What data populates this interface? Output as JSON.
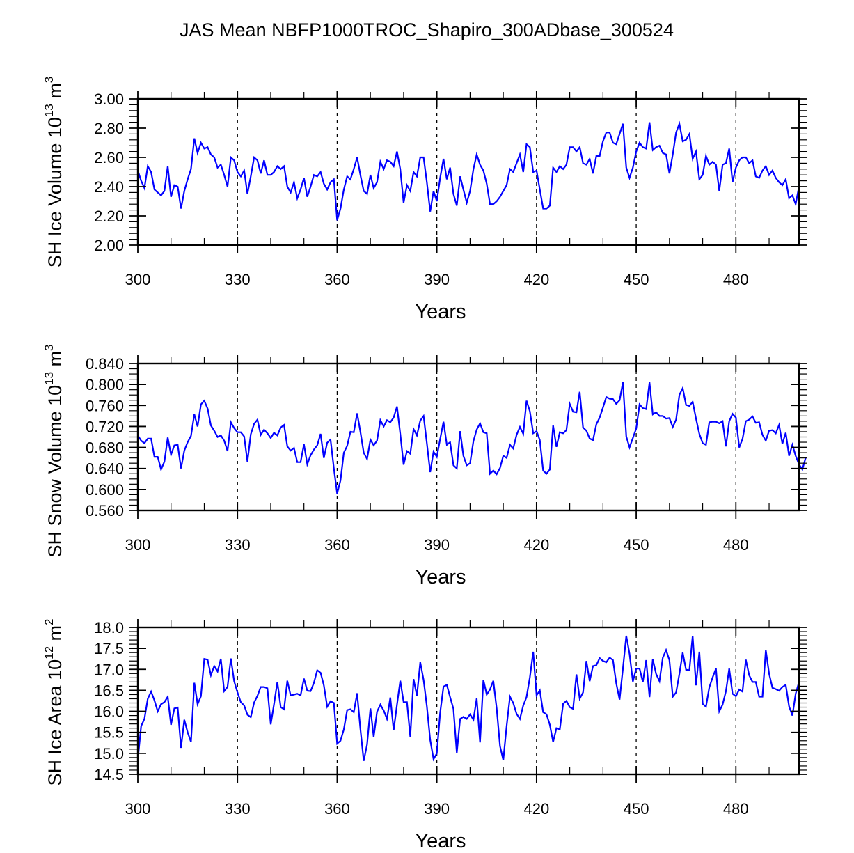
{
  "chart_data": {
    "title": "JAS Mean NBFP1000TROC_Shapiro_300ADbase_300524",
    "panels": [
      {
        "type": "line",
        "ylabel": {
          "text": "SH Ice Volume 10",
          "exp": "13",
          "unit": " m",
          "unit_exp": "3"
        },
        "xlabel": "Years",
        "xlim": [
          300,
          499
        ],
        "ylim": [
          2.0,
          3.0
        ],
        "xticks": [
          300,
          330,
          360,
          390,
          420,
          450,
          480
        ],
        "yticks": [
          2.0,
          2.2,
          2.4,
          2.6,
          2.8,
          3.0
        ],
        "ytick_labels": [
          "2.00",
          "2.20",
          "2.40",
          "2.60",
          "2.80",
          "3.00"
        ],
        "y_minor_per_major": 5,
        "vlines": [
          330,
          360,
          390,
          420,
          450,
          480
        ],
        "series": [
          {
            "name": "SH Ice Volume",
            "color": "#0000ff",
            "x_start": 300,
            "values": [
              2.51,
              2.44,
              2.39,
              2.54,
              2.5,
              2.38,
              2.36,
              2.34,
              2.37,
              2.54,
              2.33,
              2.41,
              2.4,
              2.25,
              2.37,
              2.45,
              2.52,
              2.73,
              2.63,
              2.7,
              2.66,
              2.67,
              2.62,
              2.6,
              2.53,
              2.55,
              2.48,
              2.4,
              2.6,
              2.58,
              2.5,
              2.47,
              2.51,
              2.35,
              2.47,
              2.6,
              2.58,
              2.49,
              2.58,
              2.48,
              2.48,
              2.5,
              2.54,
              2.52,
              2.54,
              2.4,
              2.36,
              2.43,
              2.32,
              2.38,
              2.46,
              2.33,
              2.4,
              2.48,
              2.47,
              2.5,
              2.42,
              2.38,
              2.43,
              2.45,
              2.17,
              2.25,
              2.38,
              2.47,
              2.45,
              2.52,
              2.6,
              2.48,
              2.37,
              2.35,
              2.48,
              2.39,
              2.43,
              2.57,
              2.52,
              2.58,
              2.57,
              2.54,
              2.64,
              2.52,
              2.29,
              2.41,
              2.37,
              2.5,
              2.47,
              2.6,
              2.6,
              2.43,
              2.23,
              2.37,
              2.3,
              2.46,
              2.59,
              2.45,
              2.53,
              2.35,
              2.27,
              2.47,
              2.38,
              2.29,
              2.37,
              2.52,
              2.62,
              2.55,
              2.51,
              2.42,
              2.28,
              2.28,
              2.3,
              2.33,
              2.37,
              2.41,
              2.52,
              2.5,
              2.56,
              2.62,
              2.5,
              2.69,
              2.67,
              2.5,
              2.51,
              2.38,
              2.25,
              2.25,
              2.27,
              2.53,
              2.5,
              2.54,
              2.52,
              2.55,
              2.67,
              2.67,
              2.64,
              2.67,
              2.56,
              2.55,
              2.59,
              2.49,
              2.61,
              2.61,
              2.71,
              2.77,
              2.77,
              2.7,
              2.69,
              2.76,
              2.83,
              2.53,
              2.46,
              2.53,
              2.64,
              2.7,
              2.67,
              2.66,
              2.84,
              2.65,
              2.67,
              2.68,
              2.63,
              2.62,
              2.49,
              2.62,
              2.77,
              2.83,
              2.71,
              2.72,
              2.76,
              2.59,
              2.64,
              2.45,
              2.48,
              2.61,
              2.55,
              2.57,
              2.55,
              2.37,
              2.55,
              2.56,
              2.66,
              2.43,
              2.53,
              2.58,
              2.6,
              2.6,
              2.56,
              2.58,
              2.47,
              2.46,
              2.51,
              2.54,
              2.48,
              2.51,
              2.46,
              2.43,
              2.41,
              2.45,
              2.32,
              2.34,
              2.28,
              2.4
            ]
          }
        ]
      },
      {
        "type": "line",
        "ylabel": {
          "text": "SH Snow Volume 10",
          "exp": "13",
          "unit": " m",
          "unit_exp": "3"
        },
        "xlabel": "Years",
        "xlim": [
          300,
          499
        ],
        "ylim": [
          0.56,
          0.84
        ],
        "xticks": [
          300,
          330,
          360,
          390,
          420,
          450,
          480
        ],
        "yticks": [
          0.56,
          0.6,
          0.64,
          0.68,
          0.72,
          0.76,
          0.8,
          0.84
        ],
        "ytick_labels": [
          "0.560",
          "0.600",
          "0.640",
          "0.680",
          "0.720",
          "0.760",
          "0.800",
          "0.840"
        ],
        "y_minor_per_major": 4,
        "vlines": [
          330,
          360,
          390,
          420,
          450,
          480
        ],
        "series": [
          {
            "name": "SH Snow Volume",
            "color": "#0000ff",
            "x_start": 300,
            "values": [
              0.703,
              0.693,
              0.688,
              0.697,
              0.697,
              0.662,
              0.662,
              0.638,
              0.653,
              0.699,
              0.666,
              0.684,
              0.685,
              0.64,
              0.674,
              0.69,
              0.702,
              0.743,
              0.72,
              0.762,
              0.769,
              0.754,
              0.722,
              0.712,
              0.7,
              0.703,
              0.693,
              0.673,
              0.728,
              0.717,
              0.709,
              0.709,
              0.701,
              0.653,
              0.705,
              0.725,
              0.733,
              0.704,
              0.714,
              0.707,
              0.698,
              0.708,
              0.703,
              0.718,
              0.723,
              0.682,
              0.674,
              0.679,
              0.652,
              0.652,
              0.686,
              0.648,
              0.665,
              0.676,
              0.684,
              0.706,
              0.66,
              0.689,
              0.695,
              0.64,
              0.592,
              0.617,
              0.67,
              0.683,
              0.71,
              0.709,
              0.745,
              0.71,
              0.67,
              0.658,
              0.695,
              0.684,
              0.693,
              0.732,
              0.72,
              0.732,
              0.728,
              0.737,
              0.758,
              0.706,
              0.647,
              0.673,
              0.668,
              0.715,
              0.703,
              0.731,
              0.74,
              0.688,
              0.633,
              0.672,
              0.662,
              0.696,
              0.729,
              0.685,
              0.69,
              0.646,
              0.64,
              0.711,
              0.664,
              0.646,
              0.65,
              0.692,
              0.714,
              0.726,
              0.709,
              0.707,
              0.63,
              0.636,
              0.629,
              0.641,
              0.664,
              0.66,
              0.685,
              0.678,
              0.704,
              0.719,
              0.706,
              0.769,
              0.749,
              0.707,
              0.711,
              0.694,
              0.636,
              0.63,
              0.638,
              0.722,
              0.681,
              0.709,
              0.707,
              0.713,
              0.763,
              0.748,
              0.747,
              0.786,
              0.718,
              0.712,
              0.697,
              0.694,
              0.724,
              0.737,
              0.756,
              0.776,
              0.773,
              0.772,
              0.763,
              0.77,
              0.804,
              0.701,
              0.68,
              0.698,
              0.716,
              0.762,
              0.755,
              0.753,
              0.804,
              0.743,
              0.747,
              0.74,
              0.74,
              0.735,
              0.736,
              0.719,
              0.733,
              0.78,
              0.793,
              0.761,
              0.759,
              0.767,
              0.735,
              0.706,
              0.688,
              0.685,
              0.728,
              0.729,
              0.729,
              0.726,
              0.73,
              0.682,
              0.73,
              0.744,
              0.737,
              0.68,
              0.696,
              0.73,
              0.733,
              0.739,
              0.727,
              0.728,
              0.704,
              0.693,
              0.712,
              0.713,
              0.707,
              0.723,
              0.687,
              0.708,
              0.664,
              0.685,
              0.664,
              0.648,
              0.638,
              0.66
            ]
          }
        ]
      },
      {
        "type": "line",
        "ylabel": {
          "text": "SH Ice Area 10",
          "exp": "12",
          "unit": " m",
          "unit_exp": "2"
        },
        "xlabel": "Years",
        "xlim": [
          300,
          499
        ],
        "ylim": [
          14.5,
          18.0
        ],
        "xticks": [
          300,
          330,
          360,
          390,
          420,
          450,
          480
        ],
        "yticks": [
          14.5,
          15.0,
          15.5,
          16.0,
          16.5,
          17.0,
          17.5,
          18.0
        ],
        "ytick_labels": [
          "14.5",
          "15.0",
          "15.5",
          "16.0",
          "16.5",
          "17.0",
          "17.5",
          "18.0"
        ],
        "y_minor_per_major": 5,
        "vlines": [
          330,
          360,
          390,
          420,
          450,
          480
        ],
        "series": [
          {
            "name": "SH Ice Area",
            "color": "#0000ff",
            "x_start": 300,
            "values": [
              14.85,
              15.65,
              15.82,
              16.3,
              16.47,
              16.26,
              16.0,
              16.17,
              16.22,
              16.35,
              15.68,
              16.07,
              16.09,
              15.13,
              15.8,
              15.5,
              15.27,
              16.68,
              16.17,
              16.36,
              17.25,
              17.23,
              16.86,
              17.08,
              16.95,
              17.25,
              16.48,
              16.58,
              17.26,
              16.72,
              16.45,
              16.22,
              16.14,
              15.92,
              15.86,
              16.21,
              16.37,
              16.58,
              16.58,
              16.55,
              15.69,
              16.17,
              16.7,
              16.1,
              16.05,
              16.73,
              16.38,
              16.4,
              16.42,
              16.38,
              16.78,
              16.49,
              16.48,
              16.68,
              16.98,
              16.92,
              16.62,
              16.11,
              16.24,
              16.2,
              15.23,
              15.3,
              15.57,
              16.03,
              16.05,
              15.98,
              16.43,
              15.58,
              14.82,
              15.21,
              16.07,
              15.39,
              15.99,
              16.16,
              16.02,
              15.82,
              16.33,
              15.55,
              16.16,
              16.73,
              16.22,
              16.22,
              15.39,
              16.77,
              16.37,
              17.17,
              16.75,
              16.12,
              15.32,
              14.86,
              15.0,
              15.97,
              16.59,
              16.63,
              16.34,
              16.06,
              15.01,
              15.82,
              15.87,
              15.82,
              15.93,
              15.8,
              16.31,
              15.26,
              16.75,
              16.4,
              16.52,
              16.73,
              16.07,
              15.17,
              14.84,
              15.65,
              16.35,
              16.2,
              15.94,
              15.82,
              16.14,
              16.34,
              16.81,
              17.42,
              16.38,
              16.5,
              15.98,
              15.93,
              15.68,
              15.27,
              15.6,
              15.57,
              16.18,
              16.25,
              16.1,
              16.06,
              16.88,
              16.3,
              16.45,
              17.2,
              16.72,
              17.08,
              17.1,
              17.27,
              17.2,
              17.17,
              17.28,
              17.22,
              16.67,
              16.28,
              17.02,
              17.8,
              17.37,
              16.71,
              17.02,
              17.02,
              16.7,
              17.22,
              16.34,
              17.24,
              16.89,
              16.72,
              17.28,
              17.46,
              17.22,
              16.35,
              16.45,
              16.89,
              17.4,
              16.99,
              16.98,
              17.8,
              16.62,
              17.42,
              16.18,
              16.11,
              16.57,
              16.81,
              17.02,
              16.0,
              16.16,
              16.48,
              17.02,
              16.42,
              16.36,
              16.52,
              16.47,
              17.23,
              16.86,
              16.7,
              16.7,
              16.35,
              16.35,
              17.46,
              16.9,
              16.56,
              16.53,
              16.49,
              16.58,
              16.63,
              16.12,
              15.9,
              16.42,
              16.7
            ]
          }
        ]
      }
    ]
  }
}
